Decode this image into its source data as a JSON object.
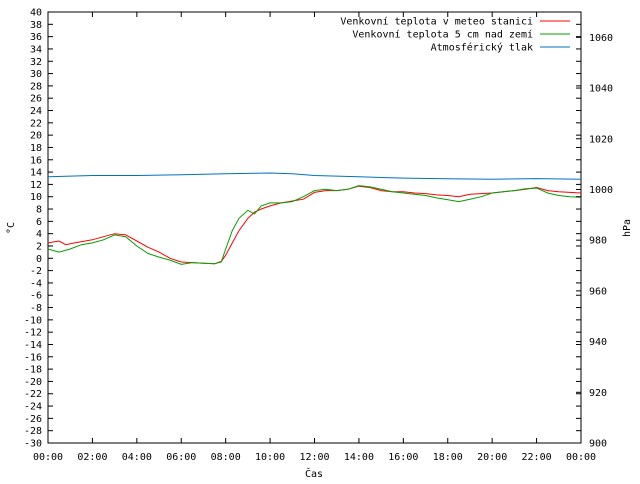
{
  "chart_data": {
    "type": "line",
    "title": "",
    "xlabel": "Čas",
    "ylabel": "°C",
    "y2label": "hPa",
    "xlim": [
      0,
      24
    ],
    "ylim": [
      -30,
      40
    ],
    "y2lim": [
      900,
      1070
    ],
    "x_ticks": [
      "00:00",
      "02:00",
      "04:00",
      "06:00",
      "08:00",
      "10:00",
      "12:00",
      "14:00",
      "16:00",
      "18:00",
      "20:00",
      "22:00",
      "00:00"
    ],
    "y_ticks": [
      40,
      38,
      36,
      34,
      32,
      30,
      28,
      26,
      24,
      22,
      20,
      18,
      16,
      14,
      12,
      10,
      8,
      6,
      4,
      2,
      0,
      -2,
      -4,
      -6,
      -8,
      -10,
      -12,
      -14,
      -16,
      -18,
      -20,
      -22,
      -24,
      -26,
      -28,
      -30
    ],
    "y2_ticks": [
      1060,
      1040,
      1020,
      1000,
      980,
      960,
      940,
      920,
      900
    ],
    "grid": false,
    "legend_position": "top-right",
    "series": [
      {
        "name": "Venkovní teplota v meteo stanici",
        "axis": "left",
        "color": "#ff0000",
        "x": [
          0,
          0.5,
          0.8,
          1.2,
          2,
          2.5,
          3,
          3.5,
          4,
          4.5,
          5,
          5.5,
          6,
          6.5,
          7,
          7.5,
          7.8,
          8,
          8.3,
          8.6,
          9,
          9.3,
          9.6,
          10,
          10.5,
          11,
          11.5,
          12,
          12.5,
          13,
          13.5,
          14,
          14.5,
          15,
          15.5,
          16,
          16.5,
          17,
          17.5,
          18,
          18.5,
          19,
          19.5,
          20,
          20.5,
          21,
          21.5,
          22,
          22.5,
          23,
          23.5,
          24
        ],
        "y": [
          2.5,
          2.8,
          2.2,
          2.5,
          3.0,
          3.5,
          4.0,
          3.8,
          2.8,
          1.8,
          1.0,
          0.0,
          -0.6,
          -0.7,
          -0.8,
          -0.9,
          -0.5,
          0.5,
          2.5,
          4.5,
          6.5,
          7.5,
          8.0,
          8.5,
          9.0,
          9.3,
          9.6,
          10.7,
          11.0,
          11.0,
          11.2,
          11.7,
          11.5,
          11.0,
          10.8,
          10.8,
          10.6,
          10.5,
          10.3,
          10.2,
          10.0,
          10.4,
          10.5,
          10.6,
          10.8,
          11.0,
          11.2,
          11.5,
          11.0,
          10.8,
          10.7,
          10.6
        ]
      },
      {
        "name": "Venkovní teplota 5 cm nad zemí",
        "axis": "left",
        "color": "#00a000",
        "x": [
          0,
          0.5,
          1,
          1.5,
          2,
          2.5,
          3,
          3.5,
          4,
          4.5,
          5,
          5.5,
          6,
          6.5,
          7,
          7.5,
          7.8,
          8,
          8.3,
          8.6,
          9,
          9.3,
          9.6,
          10,
          10.5,
          11,
          11.5,
          12,
          12.5,
          13,
          13.5,
          14,
          14.5,
          15,
          15.5,
          16,
          16.5,
          17,
          17.5,
          18,
          18.5,
          19,
          19.5,
          20,
          20.5,
          21,
          21.5,
          22,
          22.5,
          23,
          23.5,
          24
        ],
        "y": [
          1.5,
          1.0,
          1.5,
          2.2,
          2.5,
          3.0,
          3.8,
          3.5,
          2.0,
          0.8,
          0.2,
          -0.3,
          -1.0,
          -0.7,
          -0.8,
          -0.9,
          -0.6,
          1.5,
          4.5,
          6.5,
          7.8,
          7.2,
          8.5,
          9.0,
          9.0,
          9.2,
          10.0,
          11.0,
          11.2,
          11.0,
          11.2,
          11.8,
          11.6,
          11.2,
          10.8,
          10.6,
          10.4,
          10.2,
          9.8,
          9.5,
          9.2,
          9.6,
          10.0,
          10.6,
          10.8,
          11.0,
          11.3,
          11.4,
          10.6,
          10.2,
          10.0,
          9.9
        ]
      },
      {
        "name": "Atmosférický tlak",
        "axis": "right",
        "color": "#0072bd",
        "x": [
          0,
          2,
          4,
          6,
          8,
          10,
          11,
          12,
          14,
          16,
          18,
          20,
          22,
          24
        ],
        "y": [
          1005.0,
          1005.5,
          1005.5,
          1005.8,
          1006.2,
          1006.5,
          1006.2,
          1005.5,
          1005.0,
          1004.5,
          1004.2,
          1004.0,
          1004.3,
          1004.0
        ]
      }
    ]
  }
}
